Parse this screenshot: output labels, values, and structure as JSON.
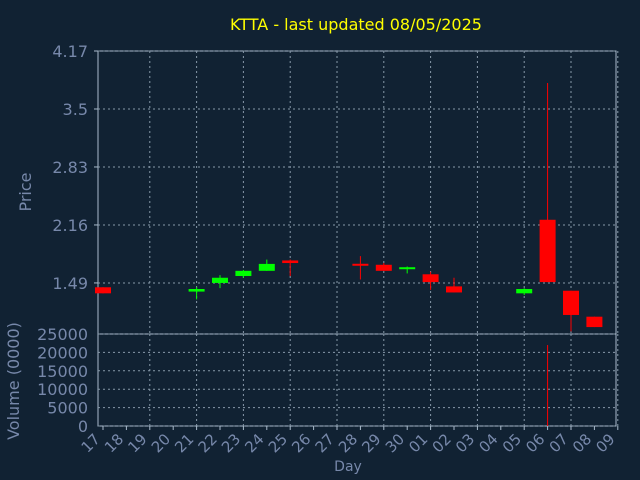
{
  "chart_data": {
    "type": "candlestick",
    "title": "KTTA - last updated 08/05/2025",
    "colors": {
      "background": "#112233",
      "title": "#ffff00",
      "axis_text": "#7788aa",
      "grid": "#8899aa",
      "frame": "#aabbcc",
      "up": "#00ff00",
      "down": "#ff0000"
    },
    "price_panel": {
      "ylabel": "Price",
      "ylim": [
        0.9,
        4.17
      ],
      "ticks": [
        1.49,
        2.16,
        2.83,
        3.5,
        4.17
      ],
      "tick_labels": [
        "1.49",
        "2.16",
        "2.83",
        "3.5",
        "4.17"
      ]
    },
    "volume_panel": {
      "ylabel": "Volume (0000)",
      "ylim": [
        0,
        25000
      ],
      "ticks": [
        0,
        5000,
        10000,
        15000,
        20000,
        25000
      ],
      "tick_labels": [
        "0",
        "5000",
        "10000",
        "15000",
        "20000",
        "25000"
      ]
    },
    "xlabel": "Day",
    "days": [
      "17",
      "18",
      "19",
      "20",
      "21",
      "22",
      "23",
      "24",
      "25",
      "26",
      "27",
      "28",
      "29",
      "30",
      "01",
      "02",
      "03",
      "04",
      "05",
      "06",
      "07",
      "08",
      "09"
    ],
    "candles": [
      {
        "day": "17",
        "open": 1.44,
        "close": 1.37,
        "high": 1.44,
        "low": 1.37,
        "volume": 0
      },
      {
        "day": "21",
        "open": 1.39,
        "close": 1.42,
        "high": 1.44,
        "low": 1.3,
        "volume": 0
      },
      {
        "day": "22",
        "open": 1.49,
        "close": 1.55,
        "high": 1.58,
        "low": 1.43,
        "volume": 0
      },
      {
        "day": "23",
        "open": 1.57,
        "close": 1.63,
        "high": 1.64,
        "low": 1.55,
        "volume": 0
      },
      {
        "day": "24",
        "open": 1.63,
        "close": 1.71,
        "high": 1.76,
        "low": 1.63,
        "volume": 0
      },
      {
        "day": "25",
        "open": 1.75,
        "close": 1.72,
        "high": 1.76,
        "low": 1.57,
        "volume": 0
      },
      {
        "day": "28",
        "open": 1.7,
        "close": 1.69,
        "high": 1.8,
        "low": 1.53,
        "volume": 0
      },
      {
        "day": "29",
        "open": 1.7,
        "close": 1.63,
        "high": 1.72,
        "low": 1.63,
        "volume": 0
      },
      {
        "day": "30",
        "open": 1.64,
        "close": 1.66,
        "high": 1.68,
        "low": 1.6,
        "volume": 0
      },
      {
        "day": "01",
        "open": 1.59,
        "close": 1.5,
        "high": 1.62,
        "low": 1.41,
        "volume": 0
      },
      {
        "day": "02",
        "open": 1.45,
        "close": 1.38,
        "high": 1.55,
        "low": 1.38,
        "volume": 0
      },
      {
        "day": "05",
        "open": 1.37,
        "close": 1.42,
        "high": 1.43,
        "low": 1.35,
        "volume": 0
      },
      {
        "day": "06",
        "open": 2.22,
        "close": 1.5,
        "high": 3.8,
        "low": 1.5,
        "volume": 22000
      },
      {
        "day": "07",
        "open": 1.4,
        "close": 1.12,
        "high": 1.4,
        "low": 0.93,
        "volume": 0
      },
      {
        "day": "08",
        "open": 1.1,
        "close": 0.98,
        "high": 1.1,
        "low": 0.98,
        "volume": 0
      }
    ]
  }
}
